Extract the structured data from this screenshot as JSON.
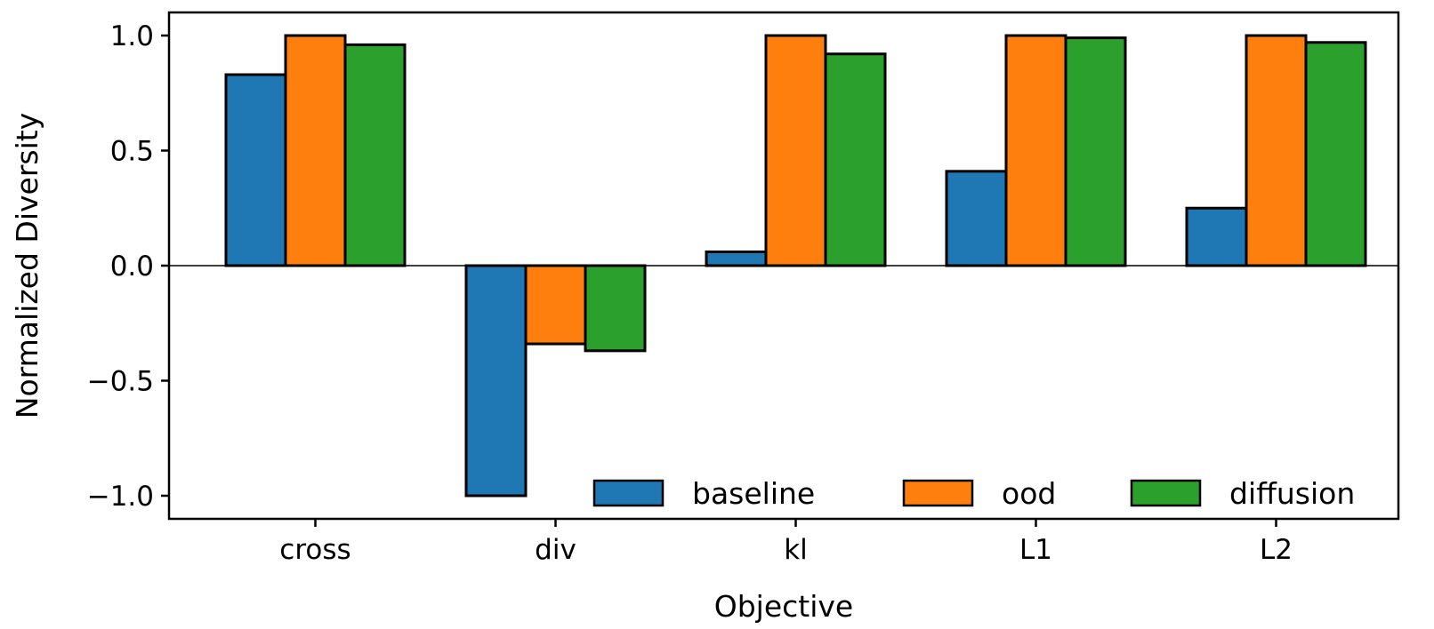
{
  "chart_data": {
    "type": "bar",
    "categories": [
      "cross",
      "div",
      "kl",
      "L1",
      "L2"
    ],
    "series": [
      {
        "name": "baseline",
        "color": "#1f77b4",
        "values": [
          0.83,
          -1.0,
          0.06,
          0.41,
          0.25
        ]
      },
      {
        "name": "ood",
        "color": "#ff7f0e",
        "values": [
          1.0,
          -0.34,
          1.0,
          1.0,
          1.0
        ]
      },
      {
        "name": "diffusion",
        "color": "#2ca02c",
        "values": [
          0.96,
          -0.37,
          0.92,
          0.99,
          0.97
        ]
      }
    ],
    "title": "",
    "xlabel": "Objective",
    "ylabel": "Normalized Diversity",
    "ylim": [
      -1.1,
      1.1
    ],
    "yticks": [
      1.0,
      0.5,
      0.0,
      -0.5,
      -1.0
    ],
    "ytick_labels": [
      "1.0",
      "0.5",
      "0.0",
      "−0.5",
      "−1.0"
    ],
    "zero_line": true,
    "legend_position": "lower-right",
    "legend_layout": "horizontal"
  }
}
